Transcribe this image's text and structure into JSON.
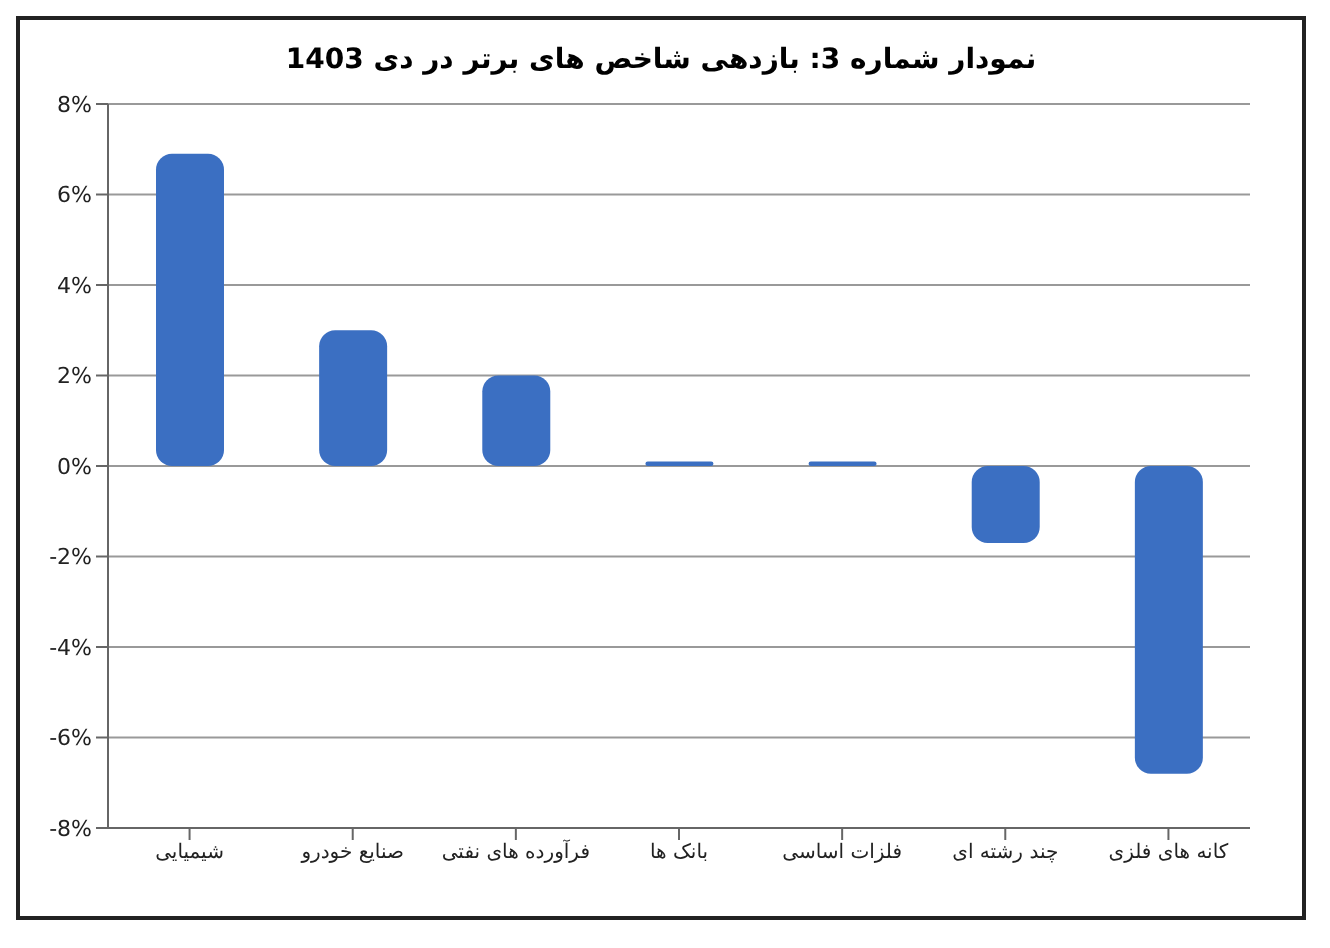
{
  "chart_data": {
    "type": "bar",
    "title": "نمودار شماره 3: بازدهی شاخص های برتر در دی 1403",
    "categories": [
      "شیمیایی",
      "صنایع خودرو",
      "فرآورده های نفتی",
      "بانک ها",
      "فلزات اساسی",
      "چند رشته ای",
      "کانه های فلزی"
    ],
    "values": [
      6.9,
      3.0,
      2.0,
      0.1,
      0.1,
      -1.7,
      -6.8
    ],
    "color": "#3b6fc2",
    "ylim": [
      -8,
      8
    ],
    "yticks": [
      {
        "value": -8,
        "label": "-8%"
      },
      {
        "value": -6,
        "label": "-6%"
      },
      {
        "value": -4,
        "label": "-4%"
      },
      {
        "value": -2,
        "label": "-2%"
      },
      {
        "value": 0,
        "label": "0%"
      },
      {
        "value": 2,
        "label": "2%"
      },
      {
        "value": 4,
        "label": "4%"
      },
      {
        "value": 6,
        "label": "6%"
      },
      {
        "value": 8,
        "label": "8%"
      }
    ],
    "grid": "y"
  }
}
